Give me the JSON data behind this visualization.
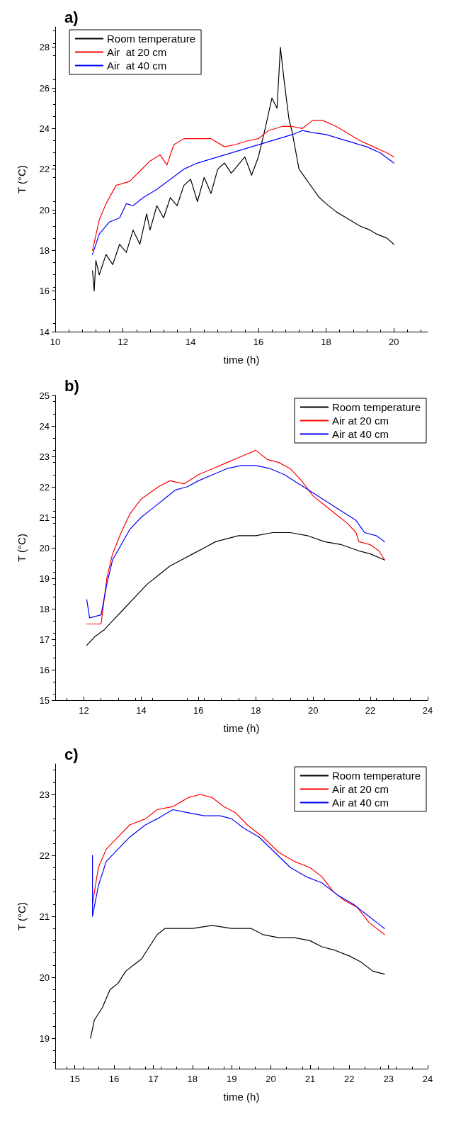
{
  "chart_data": [
    {
      "type": "line",
      "title": "a)",
      "xlabel": "time (h)",
      "ylabel": "T (°C)",
      "xlim": [
        10,
        21
      ],
      "xticks": [
        10,
        12,
        14,
        16,
        18,
        20
      ],
      "ylim": [
        14,
        29
      ],
      "yticks": [
        14,
        16,
        18,
        20,
        22,
        24,
        26,
        28
      ],
      "legend": "top left",
      "grid": false,
      "marker": "none",
      "line_style": "solid",
      "series": [
        {
          "name": "Room temperature",
          "color": "#000000",
          "x": [
            11.1,
            11.15,
            11.2,
            11.3,
            11.5,
            11.7,
            11.9,
            12.1,
            12.3,
            12.5,
            12.7,
            12.8,
            13,
            13.2,
            13.4,
            13.6,
            13.8,
            14,
            14.2,
            14.4,
            14.6,
            14.8,
            15,
            15.2,
            15.4,
            15.6,
            15.8,
            16,
            16.2,
            16.4,
            16.55,
            16.65,
            16.75,
            16.9,
            17,
            17.2,
            17.5,
            17.8,
            18,
            18.3,
            18.6,
            19,
            19.3,
            19.5,
            19.8,
            20
          ],
          "values": [
            17,
            16,
            17.5,
            16.8,
            17.8,
            17.3,
            18.3,
            17.9,
            19,
            18.3,
            19.8,
            19,
            20.2,
            19.6,
            20.6,
            20.2,
            21.2,
            21.5,
            20.4,
            21.6,
            20.8,
            22,
            22.3,
            21.8,
            22.2,
            22.6,
            21.7,
            22.6,
            24,
            25.5,
            25,
            28,
            26.5,
            24.5,
            23.8,
            22,
            21.3,
            20.6,
            20.3,
            19.9,
            19.6,
            19.2,
            19,
            18.8,
            18.6,
            18.3
          ]
        },
        {
          "name": "Air  at 20 cm",
          "color": "#ff0000",
          "x": [
            11.1,
            11.3,
            11.5,
            11.8,
            12.2,
            12.5,
            12.8,
            13.1,
            13.3,
            13.5,
            13.8,
            14.2,
            14.6,
            15,
            15.3,
            15.7,
            16,
            16.3,
            16.7,
            17,
            17.3,
            17.6,
            17.9,
            18.3,
            18.6,
            19,
            19.4,
            19.8,
            20
          ],
          "values": [
            18,
            19.5,
            20.3,
            21.2,
            21.4,
            21.9,
            22.4,
            22.7,
            22.2,
            23.2,
            23.5,
            23.5,
            23.5,
            23.1,
            23.2,
            23.4,
            23.5,
            23.9,
            24.1,
            24.1,
            24,
            24.4,
            24.4,
            24.1,
            23.8,
            23.4,
            23.1,
            22.8,
            22.6
          ]
        },
        {
          "name": "Air  at 40 cm",
          "color": "#0000ff",
          "x": [
            11.1,
            11.3,
            11.6,
            11.9,
            12.1,
            12.3,
            12.6,
            13,
            13.4,
            13.8,
            14.2,
            14.6,
            15,
            15.4,
            15.8,
            16.2,
            16.6,
            17,
            17.3,
            17.6,
            18,
            18.4,
            18.8,
            19.2,
            19.6,
            20
          ],
          "values": [
            17.8,
            18.8,
            19.4,
            19.6,
            20.3,
            20.2,
            20.6,
            21,
            21.5,
            22,
            22.3,
            22.5,
            22.7,
            22.9,
            23.1,
            23.3,
            23.5,
            23.7,
            23.9,
            23.8,
            23.7,
            23.5,
            23.3,
            23.1,
            22.8,
            22.3
          ]
        }
      ]
    },
    {
      "type": "line",
      "title": "b)",
      "xlabel": "time (h)",
      "ylabel": "T (°C)",
      "xlim": [
        11,
        24
      ],
      "xticks": [
        12,
        14,
        16,
        18,
        20,
        22,
        24
      ],
      "ylim": [
        15,
        25
      ],
      "yticks": [
        15,
        16,
        17,
        18,
        19,
        20,
        21,
        22,
        23,
        24,
        25
      ],
      "legend": "top right",
      "grid": false,
      "marker": "none",
      "line_style": "solid",
      "series": [
        {
          "name": "Room temperature",
          "color": "#000000",
          "x": [
            12.1,
            12.4,
            12.7,
            13,
            13.4,
            13.8,
            14.2,
            14.6,
            15,
            15.4,
            15.8,
            16.2,
            16.6,
            17,
            17.4,
            18,
            18.6,
            19.2,
            19.8,
            20.4,
            21,
            21.6,
            22,
            22.5
          ],
          "values": [
            16.8,
            17.1,
            17.3,
            17.6,
            18,
            18.4,
            18.8,
            19.1,
            19.4,
            19.6,
            19.8,
            20,
            20.2,
            20.3,
            20.4,
            20.4,
            20.5,
            20.5,
            20.4,
            20.2,
            20.1,
            19.9,
            19.8,
            19.6
          ]
        },
        {
          "name": "Air at 20 cm",
          "color": "#ff0000",
          "x": [
            12.1,
            12.3,
            12.6,
            12.8,
            13,
            13.3,
            13.6,
            14,
            14.3,
            14.6,
            15,
            15.5,
            16,
            16.5,
            17,
            17.5,
            18,
            18.4,
            18.8,
            19.2,
            19.6,
            20,
            20.4,
            20.8,
            21.2,
            21.5,
            21.6,
            22,
            22.3,
            22.5
          ],
          "values": [
            17.5,
            17.5,
            17.5,
            19,
            19.8,
            20.5,
            21.1,
            21.6,
            21.8,
            22,
            22.2,
            22.1,
            22.4,
            22.6,
            22.8,
            23,
            23.2,
            22.9,
            22.8,
            22.6,
            22.2,
            21.7,
            21.4,
            21.1,
            20.8,
            20.5,
            20.2,
            20.1,
            19.9,
            19.6
          ]
        },
        {
          "name": "Air at 40 cm",
          "color": "#0000ff",
          "x": [
            12.1,
            12.2,
            12.6,
            12.8,
            13,
            13.3,
            13.6,
            14,
            14.4,
            14.8,
            15.2,
            15.6,
            16,
            16.5,
            17,
            17.5,
            18,
            18.5,
            19,
            19.5,
            20,
            20.5,
            21,
            21.5,
            21.8,
            22.2,
            22.5
          ],
          "values": [
            18.3,
            17.7,
            17.8,
            18.8,
            19.6,
            20.1,
            20.6,
            21,
            21.3,
            21.6,
            21.9,
            22,
            22.2,
            22.4,
            22.6,
            22.7,
            22.7,
            22.6,
            22.4,
            22.1,
            21.8,
            21.5,
            21.2,
            20.9,
            20.5,
            20.4,
            20.2
          ]
        }
      ]
    },
    {
      "type": "line",
      "title": "c)",
      "xlabel": "time (h)",
      "ylabel": "T (°C)",
      "xlim": [
        14.5,
        24
      ],
      "xticks": [
        15,
        16,
        17,
        18,
        19,
        20,
        21,
        22,
        23,
        24
      ],
      "ylim": [
        18.5,
        23.5
      ],
      "yticks": [
        19,
        20,
        21,
        22,
        23
      ],
      "legend": "top right",
      "grid": false,
      "marker": "none",
      "line_style": "solid",
      "series": [
        {
          "name": "Room temperature",
          "color": "#000000",
          "x": [
            15.4,
            15.5,
            15.7,
            15.9,
            16.1,
            16.3,
            16.5,
            16.7,
            16.9,
            17.1,
            17.3,
            17.6,
            18,
            18.5,
            19,
            19.5,
            19.8,
            20.2,
            20.6,
            21,
            21.3,
            21.6,
            22,
            22.3,
            22.6,
            22.9
          ],
          "values": [
            19,
            19.3,
            19.5,
            19.8,
            19.9,
            20.1,
            20.2,
            20.3,
            20.5,
            20.7,
            20.8,
            20.8,
            20.8,
            20.85,
            20.8,
            20.8,
            20.7,
            20.65,
            20.65,
            20.6,
            20.5,
            20.45,
            20.35,
            20.25,
            20.1,
            20.05
          ]
        },
        {
          "name": "Air at 20 cm",
          "color": "#ff0000",
          "x": [
            15.45,
            15.6,
            15.8,
            16.1,
            16.4,
            16.8,
            17.1,
            17.5,
            17.9,
            18.2,
            18.5,
            18.8,
            19.1,
            19.4,
            19.8,
            20.2,
            20.6,
            21,
            21.3,
            21.6,
            21.9,
            22.2,
            22.5,
            22.9
          ],
          "values": [
            21.2,
            21.8,
            22.1,
            22.3,
            22.5,
            22.6,
            22.75,
            22.8,
            22.95,
            23,
            22.95,
            22.8,
            22.7,
            22.5,
            22.3,
            22.05,
            21.9,
            21.8,
            21.65,
            21.4,
            21.25,
            21.15,
            20.9,
            20.7
          ]
        },
        {
          "name": "Air at 40 cm",
          "color": "#0000ff",
          "x": [
            15.45,
            15.45,
            15.6,
            15.8,
            16.1,
            16.4,
            16.8,
            17.1,
            17.5,
            17.9,
            18.3,
            18.7,
            19,
            19.3,
            19.7,
            20.1,
            20.5,
            20.9,
            21.3,
            21.7,
            22.1,
            22.4,
            22.7,
            22.9
          ],
          "values": [
            22,
            21,
            21.5,
            21.9,
            22.1,
            22.3,
            22.5,
            22.6,
            22.75,
            22.7,
            22.65,
            22.65,
            22.6,
            22.45,
            22.3,
            22.05,
            21.8,
            21.65,
            21.55,
            21.35,
            21.2,
            21.05,
            20.9,
            20.8
          ]
        }
      ]
    }
  ]
}
